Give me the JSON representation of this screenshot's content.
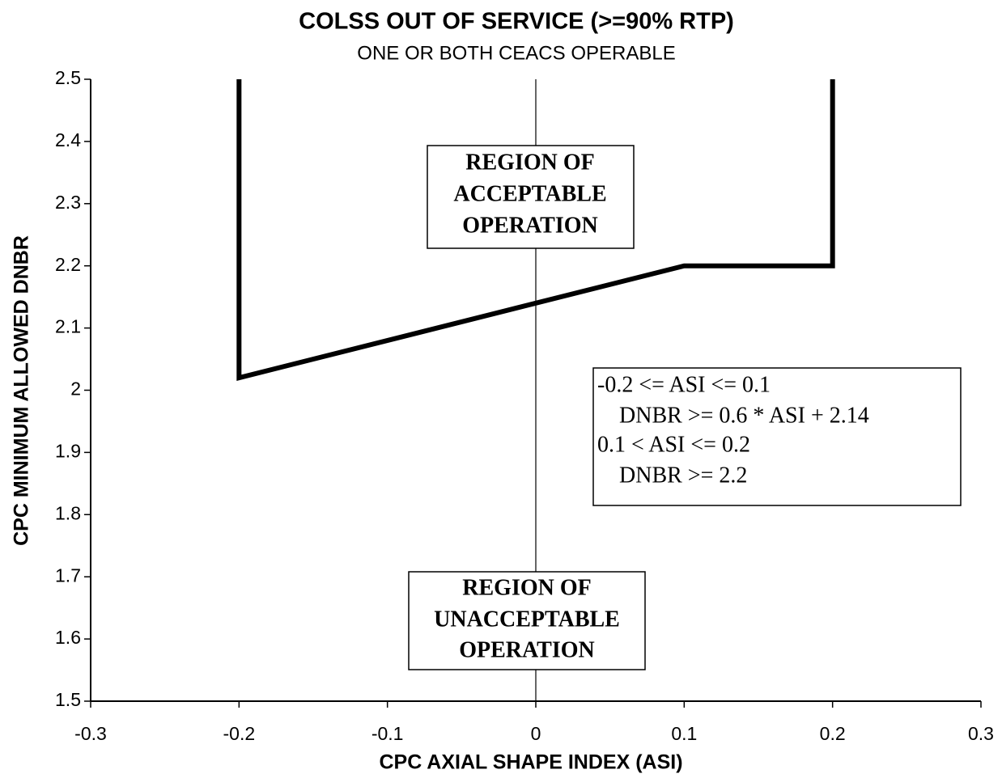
{
  "chart_data": {
    "type": "line",
    "title": "COLSS OUT OF SERVICE (>=90% RTP)",
    "subtitle": "ONE OR BOTH CEACS OPERABLE",
    "x_label": "CPC AXIAL SHAPE INDEX (ASI)",
    "y_label": "CPC MINIMUM ALLOWED DNBR",
    "x": [
      -0.2,
      -0.2,
      0.1,
      0.2,
      0.2
    ],
    "series": [
      {
        "color": "#000000",
        "values": [
          2.5,
          2.02,
          2.2,
          2.2,
          2.5
        ]
      }
    ],
    "xlim": [
      -0.3,
      0.3
    ],
    "xticks": [
      -0.3,
      -0.2,
      -0.1,
      0,
      0.1,
      0.2,
      0.3
    ],
    "ylim": [
      1.5,
      2.5
    ],
    "yticks": [
      1.5,
      1.6,
      1.7,
      1.8,
      1.9,
      2,
      2.1,
      2.2,
      2.3,
      2.4,
      2.5
    ],
    "annotations": [
      [
        "REGION OF",
        "ACCEPTABLE",
        "OPERATION"
      ],
      [
        "REGION OF",
        "UNACCEPTABLE",
        "OPERATION"
      ],
      [
        "-0.2 <= ASI <= 0.1",
        "DNBR >= 0.6 * ASI + 2.14",
        "0.1 < ASI <= 0.2",
        "DNBR >= 2.2"
      ]
    ]
  }
}
